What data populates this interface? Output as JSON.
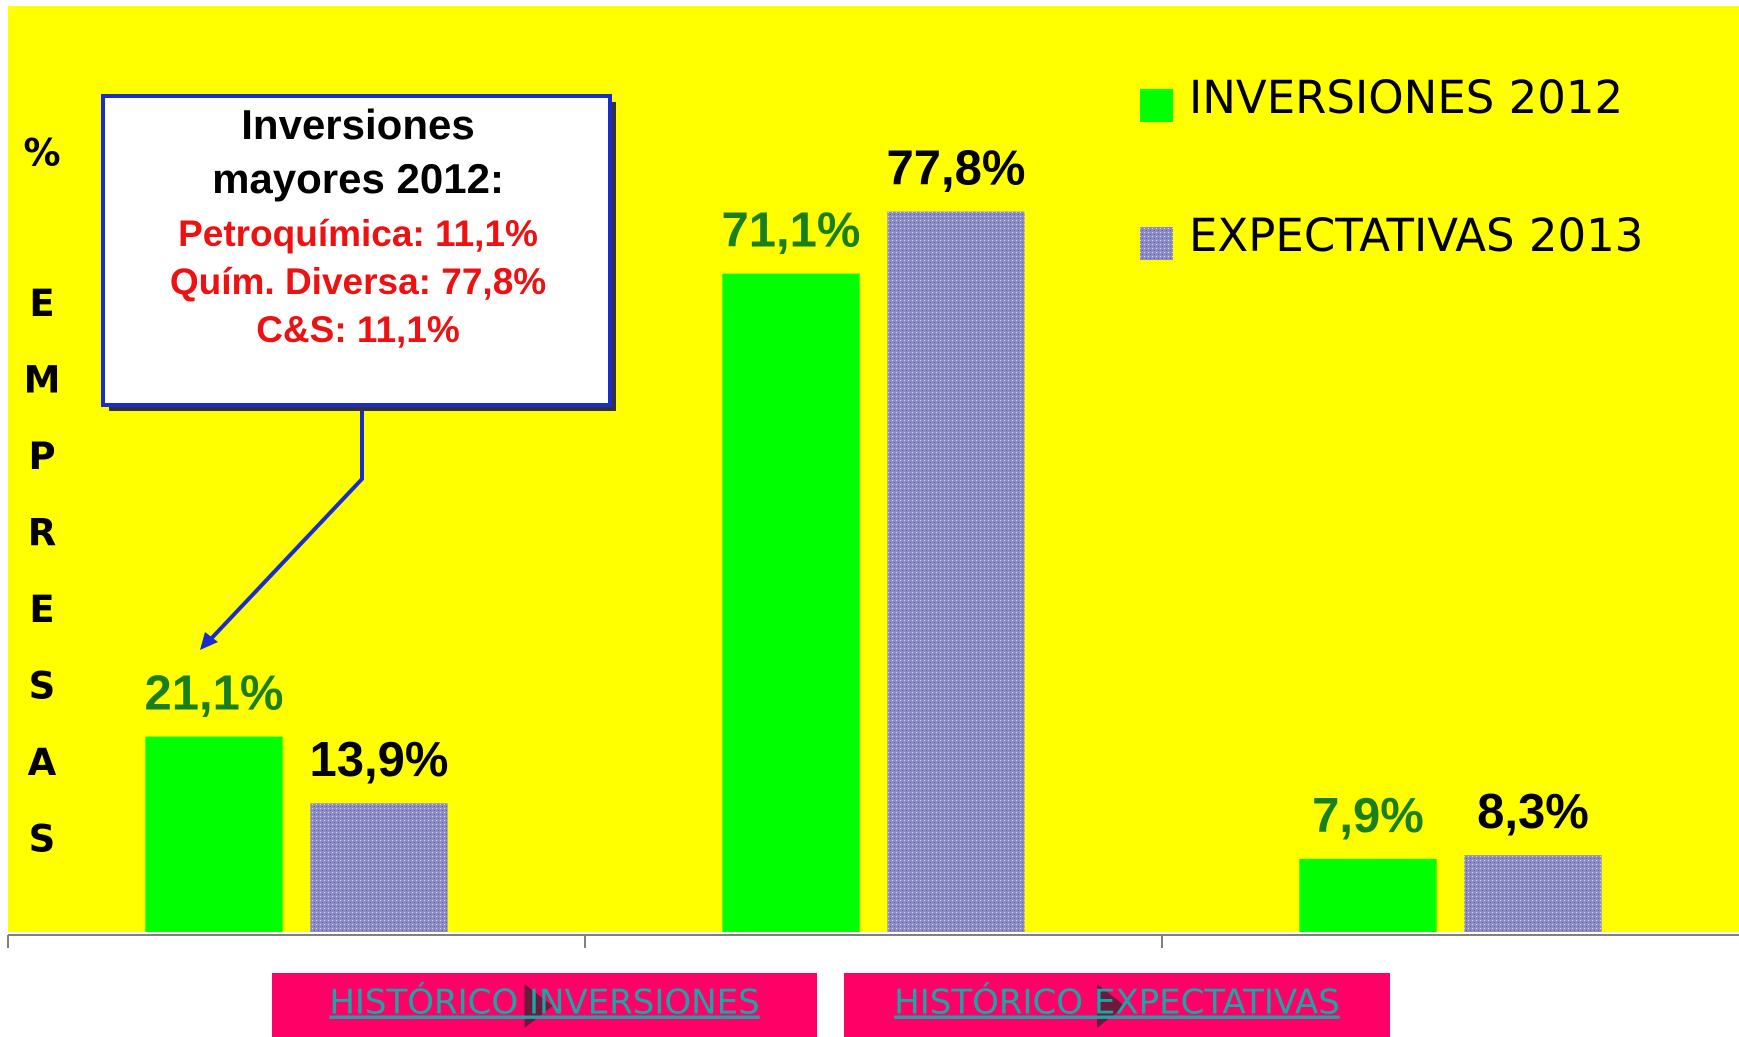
{
  "chart_data": {
    "type": "bar",
    "y_axis_unit": "%",
    "y_axis_label": "EMPRESAS",
    "categories": [
      null,
      null,
      null
    ],
    "series": [
      {
        "name": "INVERSIONES 2012",
        "color": "#00ff00",
        "label_color": "#1a7f1a",
        "values": [
          21.1,
          71.1,
          7.9
        ],
        "value_labels": [
          "21,1%",
          "71,1%",
          "7,9%"
        ]
      },
      {
        "name": "EXPECTATIVAS 2013",
        "color": "#8c8cc8",
        "label_color": "#000000",
        "values": [
          13.9,
          77.8,
          8.3
        ],
        "value_labels": [
          "13,9%",
          "77,8%",
          "8,3%"
        ]
      }
    ],
    "ylim": [
      0,
      100
    ],
    "background": "#ffff00",
    "legend": "top-right",
    "annotation": {
      "title": [
        "Inversiones",
        "mayores 2012:"
      ],
      "lines": [
        "Petroquímica: 11,1%",
        "Quím. Diversa: 77,8%",
        "C&S: 11,1%"
      ]
    }
  },
  "buttons": [
    "HISTÓRICO INVERSIONES",
    "HISTÓRICO EXPECTATIVAS"
  ]
}
